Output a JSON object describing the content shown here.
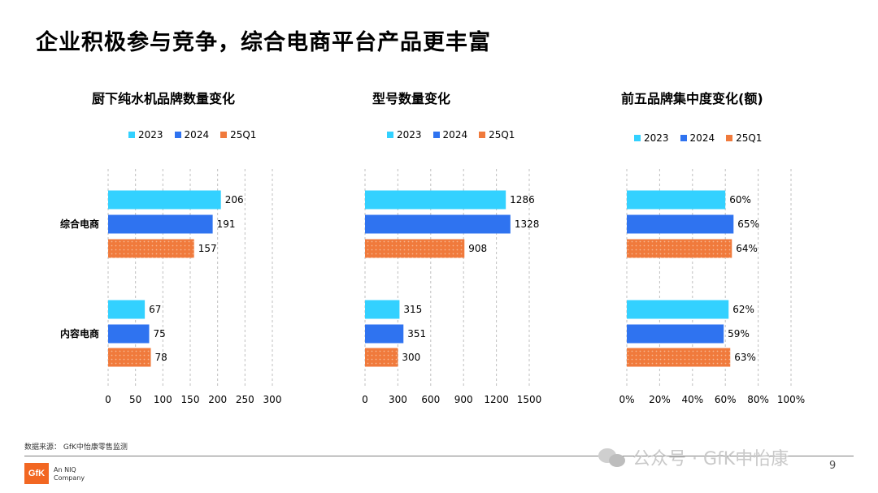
{
  "page": {
    "title": "企业积极参与竞争，综合电商平台产品更丰富",
    "source": "数据来源：  GfK中怡康零售监测",
    "logo_text": "GfK",
    "logo_sub_1": "An NIQ",
    "logo_sub_2": "Company",
    "watermark": "公众号 · GfK中怡康",
    "page_number": "9"
  },
  "colors": {
    "2023": "#33d1ff",
    "2024": "#2f73f0",
    "25Q1": "#f07a3c"
  },
  "chart_data": [
    {
      "type": "bar",
      "orientation": "horizontal",
      "title": "厨下纯水机品牌数量变化",
      "categories": [
        "综合电商",
        "内容电商"
      ],
      "series": [
        {
          "name": "2023",
          "values": [
            206,
            67
          ],
          "labels": [
            "206",
            "67"
          ]
        },
        {
          "name": "2024",
          "values": [
            191,
            75
          ],
          "labels": [
            "191",
            "75"
          ]
        },
        {
          "name": "25Q1",
          "values": [
            157,
            78
          ],
          "labels": [
            "157",
            "78"
          ]
        }
      ],
      "xlim": [
        0,
        300
      ],
      "ticks": [
        0,
        50,
        100,
        150,
        200,
        250,
        300
      ],
      "tick_labels": [
        "0",
        "50",
        "100",
        "150",
        "200",
        "250",
        "300"
      ],
      "grid": true,
      "legend": "top"
    },
    {
      "type": "bar",
      "orientation": "horizontal",
      "title": "型号数量变化",
      "categories": [
        "综合电商",
        "内容电商"
      ],
      "series": [
        {
          "name": "2023",
          "values": [
            1286,
            315
          ],
          "labels": [
            "1286",
            "315"
          ]
        },
        {
          "name": "2024",
          "values": [
            1328,
            351
          ],
          "labels": [
            "1328",
            "351"
          ]
        },
        {
          "name": "25Q1",
          "values": [
            908,
            300
          ],
          "labels": [
            "908",
            "300"
          ]
        }
      ],
      "xlim": [
        0,
        1500
      ],
      "ticks": [
        0,
        300,
        600,
        900,
        1200,
        1500
      ],
      "tick_labels": [
        "0",
        "300",
        "600",
        "900",
        "1200",
        "1500"
      ],
      "grid": true,
      "legend": "top"
    },
    {
      "type": "bar",
      "orientation": "horizontal",
      "title": "前五品牌集中度变化(额)",
      "categories": [
        "综合电商",
        "内容电商"
      ],
      "series": [
        {
          "name": "2023",
          "values": [
            60,
            62
          ],
          "labels": [
            "60%",
            "62%"
          ]
        },
        {
          "name": "2024",
          "values": [
            65,
            59
          ],
          "labels": [
            "65%",
            "59%"
          ]
        },
        {
          "name": "25Q1",
          "values": [
            64,
            63
          ],
          "labels": [
            "64%",
            "63%"
          ]
        }
      ],
      "xlim": [
        0,
        100
      ],
      "ticks": [
        0,
        20,
        40,
        60,
        80,
        100
      ],
      "tick_labels": [
        "0%",
        "20%",
        "40%",
        "60%",
        "80%",
        "100%"
      ],
      "grid": true,
      "legend": "top"
    }
  ]
}
